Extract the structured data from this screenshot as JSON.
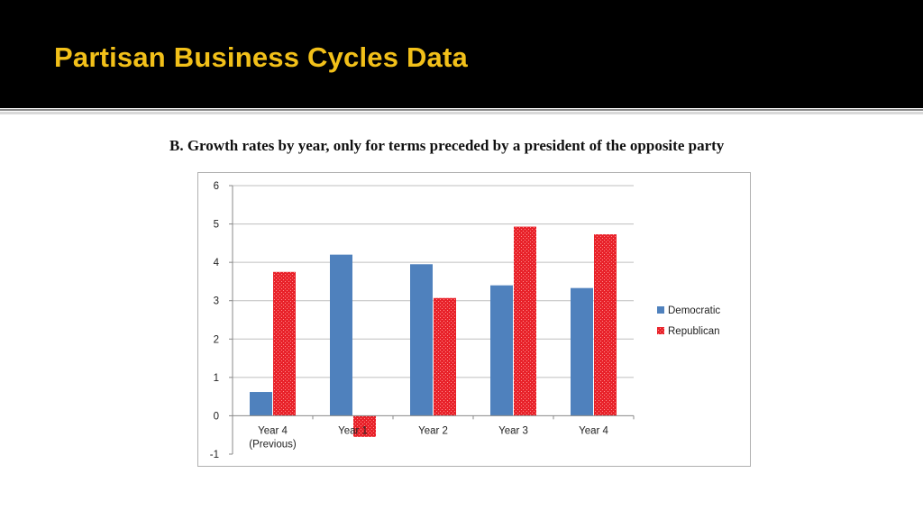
{
  "slide": {
    "title": "Partisan Business Cycles Data"
  },
  "chart_data": {
    "type": "bar",
    "title": "B. Growth rates by year, only for terms preceded by a president of the opposite party",
    "categories": [
      [
        "Year 4",
        "(Previous)"
      ],
      [
        "Year 1"
      ],
      [
        "Year 2"
      ],
      [
        "Year 3"
      ],
      [
        "Year 4"
      ]
    ],
    "series": [
      {
        "name": "Democratic",
        "values": [
          0.62,
          4.2,
          3.95,
          3.4,
          3.33
        ],
        "color": "#4f81bd"
      },
      {
        "name": "Republican",
        "values": [
          3.75,
          -0.55,
          3.07,
          4.93,
          4.73
        ],
        "color": "#e8222a"
      }
    ],
    "yticks": [
      6,
      5,
      4,
      3,
      2,
      1,
      0,
      -1
    ],
    "ylim": [
      -1,
      6
    ],
    "grid": true,
    "legend": "right"
  }
}
